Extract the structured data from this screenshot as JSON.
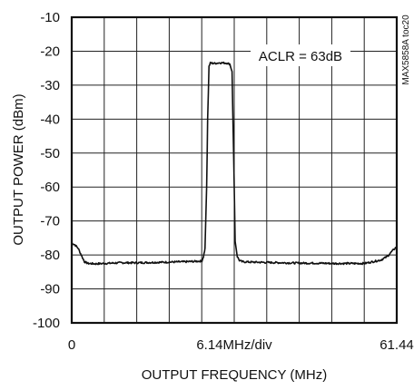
{
  "chart_data": {
    "type": "line",
    "title": "",
    "xlabel": "OUTPUT FREQUENCY (MHz)",
    "ylabel": "OUTPUT POWER (dBm)",
    "xlim": [
      0,
      61.44
    ],
    "ylim": [
      -100,
      -10
    ],
    "x_tick_labels": [
      "0",
      "6.14MHz/div",
      "61.44"
    ],
    "y_tick_labels": [
      "-10",
      "-20",
      "-30",
      "-40",
      "-50",
      "-60",
      "-70",
      "-80",
      "-90",
      "-100"
    ],
    "y_ticks": [
      -10,
      -20,
      -30,
      -40,
      -50,
      -60,
      -70,
      -80,
      -90,
      -100
    ],
    "x_divisions": 10,
    "grid": true,
    "annotation": "ACLR = 63dB",
    "side_note": "MAX5858A toc20",
    "series": [
      {
        "x": [
          0.0,
          0.6,
          1.2,
          1.8,
          2.4,
          3.07,
          4.5,
          6.14,
          9.2,
          12.3,
          15.4,
          18.4,
          21.5,
          24.6,
          24.9,
          25.2,
          25.5,
          25.7,
          25.95,
          26.2,
          27.0,
          28.0,
          29.3,
          29.9,
          30.3,
          30.6,
          30.9,
          31.3,
          31.7,
          32.2,
          33.8,
          36.9,
          40.0,
          43.0,
          46.1,
          49.2,
          52.2,
          55.3,
          58.4,
          59.6,
          60.2,
          60.8,
          61.44
        ],
        "y": [
          -76.5,
          -77.0,
          -78.0,
          -80.0,
          -82.0,
          -82.5,
          -82.6,
          -82.5,
          -82.3,
          -82.3,
          -82.2,
          -82.1,
          -82.0,
          -81.8,
          -80.5,
          -78.0,
          -60.0,
          -40.0,
          -24.5,
          -23.5,
          -23.6,
          -23.4,
          -23.5,
          -23.8,
          -26.0,
          -50.0,
          -76.0,
          -80.5,
          -81.6,
          -82.0,
          -82.1,
          -82.2,
          -82.3,
          -82.4,
          -82.4,
          -82.5,
          -82.5,
          -82.5,
          -81.5,
          -80.5,
          -79.5,
          -78.5,
          -77.5
        ]
      }
    ]
  }
}
